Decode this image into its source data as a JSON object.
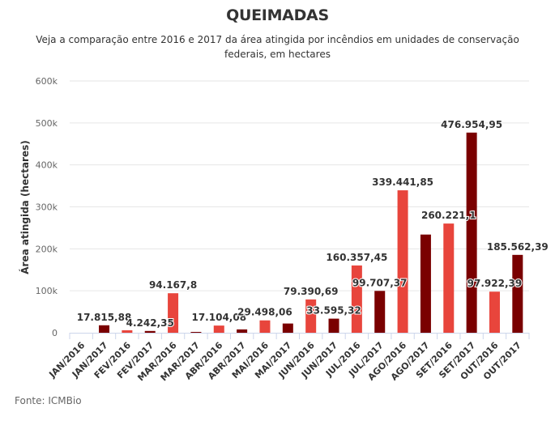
{
  "title": "QUEIMADAS",
  "subtitle": "Veja a comparação entre 2016 e 2017 da área atingida por incêndios em unidades de conservação federais, em hectares",
  "footer": "Fonte: ICMBio",
  "colors": {
    "y2016": "#E8453C",
    "y2017": "#7A0000",
    "grid": "#E6E6E6",
    "axis": "#CCD6EB"
  },
  "chart_data": {
    "type": "bar",
    "title": "QUEIMADAS",
    "subtitle": "Veja a comparação entre 2016 e 2017 da área atingida por incêndios em unidades de conservação federais, em hectares",
    "xlabel": "",
    "ylabel": "Área atingida (hectares)",
    "ylim": [
      0,
      600000
    ],
    "yticks": [
      0,
      100000,
      200000,
      300000,
      400000,
      500000,
      600000
    ],
    "ytick_labels": [
      "0",
      "100k",
      "200k",
      "300k",
      "400k",
      "500k",
      "600k"
    ],
    "grid": true,
    "legend": "none",
    "categories": [
      "JAN/2016",
      "JAN/2017",
      "FEV/2016",
      "FEV/2017",
      "MAR/2016",
      "MAR/2017",
      "ABR/2016",
      "ABR/2017",
      "MAI/2016",
      "MAI/2017",
      "JUN/2016",
      "JUN/2017",
      "JUL/2016",
      "JUL/2017",
      "AGO/2016",
      "AGO/2017",
      "SET/2016",
      "SET/2017",
      "OUT/2016",
      "OUT/2017"
    ],
    "values": [
      0,
      17815.88,
      6000,
      4242.35,
      94167.8,
      2000,
      17104.08,
      8000,
      29498.06,
      22000,
      79390.69,
      33595.32,
      160357.45,
      99707.37,
      339441.85,
      234000,
      260221.1,
      476954.95,
      97922.39,
      185562.39
    ],
    "years": [
      "2016",
      "2017",
      "2016",
      "2017",
      "2016",
      "2017",
      "2016",
      "2017",
      "2016",
      "2017",
      "2016",
      "2017",
      "2016",
      "2017",
      "2016",
      "2017",
      "2016",
      "2017",
      "2016",
      "2017"
    ],
    "data_labels": [
      "",
      "17.815,88",
      "",
      "4.242,35",
      "94.167,8",
      "",
      "17.104,08",
      "",
      "29.498,06",
      "",
      "79.390,69",
      "33.595,32",
      "160.357,45",
      "99.707,37",
      "339.441,85",
      "",
      "260.221,1",
      "476.954,95",
      "97.922,39",
      "185.562,39"
    ]
  }
}
